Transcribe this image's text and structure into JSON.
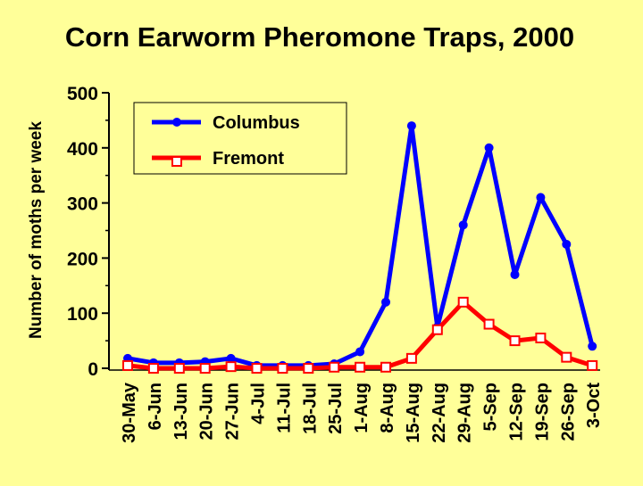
{
  "chart_data": {
    "type": "line",
    "title": "Corn Earworm Pheromone Traps, 2000",
    "ylabel": "Number of moths per week",
    "xlabel": "",
    "ylim": [
      0,
      500
    ],
    "yticks": [
      0,
      100,
      200,
      300,
      400,
      500
    ],
    "grid": false,
    "legend_position": "top-left",
    "categories": [
      "30-May",
      "6-Jun",
      "13-Jun",
      "20-Jun",
      "27-Jun",
      "4-Jul",
      "11-Jul",
      "18-Jul",
      "25-Jul",
      "1-Aug",
      "8-Aug",
      "15-Aug",
      "22-Aug",
      "29-Aug",
      "5-Sep",
      "12-Sep",
      "19-Sep",
      "26-Sep",
      "3-Oct"
    ],
    "series": [
      {
        "name": "Columbus",
        "color": "#0000ff",
        "marker": "filled-circle",
        "values": [
          18,
          10,
          10,
          12,
          18,
          5,
          5,
          5,
          8,
          30,
          120,
          440,
          75,
          260,
          400,
          170,
          310,
          225,
          40
        ]
      },
      {
        "name": "Fremont",
        "color": "#ff0000",
        "marker": "open-square",
        "values": [
          5,
          0,
          0,
          0,
          3,
          0,
          0,
          0,
          2,
          2,
          2,
          18,
          70,
          120,
          80,
          50,
          55,
          20,
          5
        ]
      }
    ]
  }
}
